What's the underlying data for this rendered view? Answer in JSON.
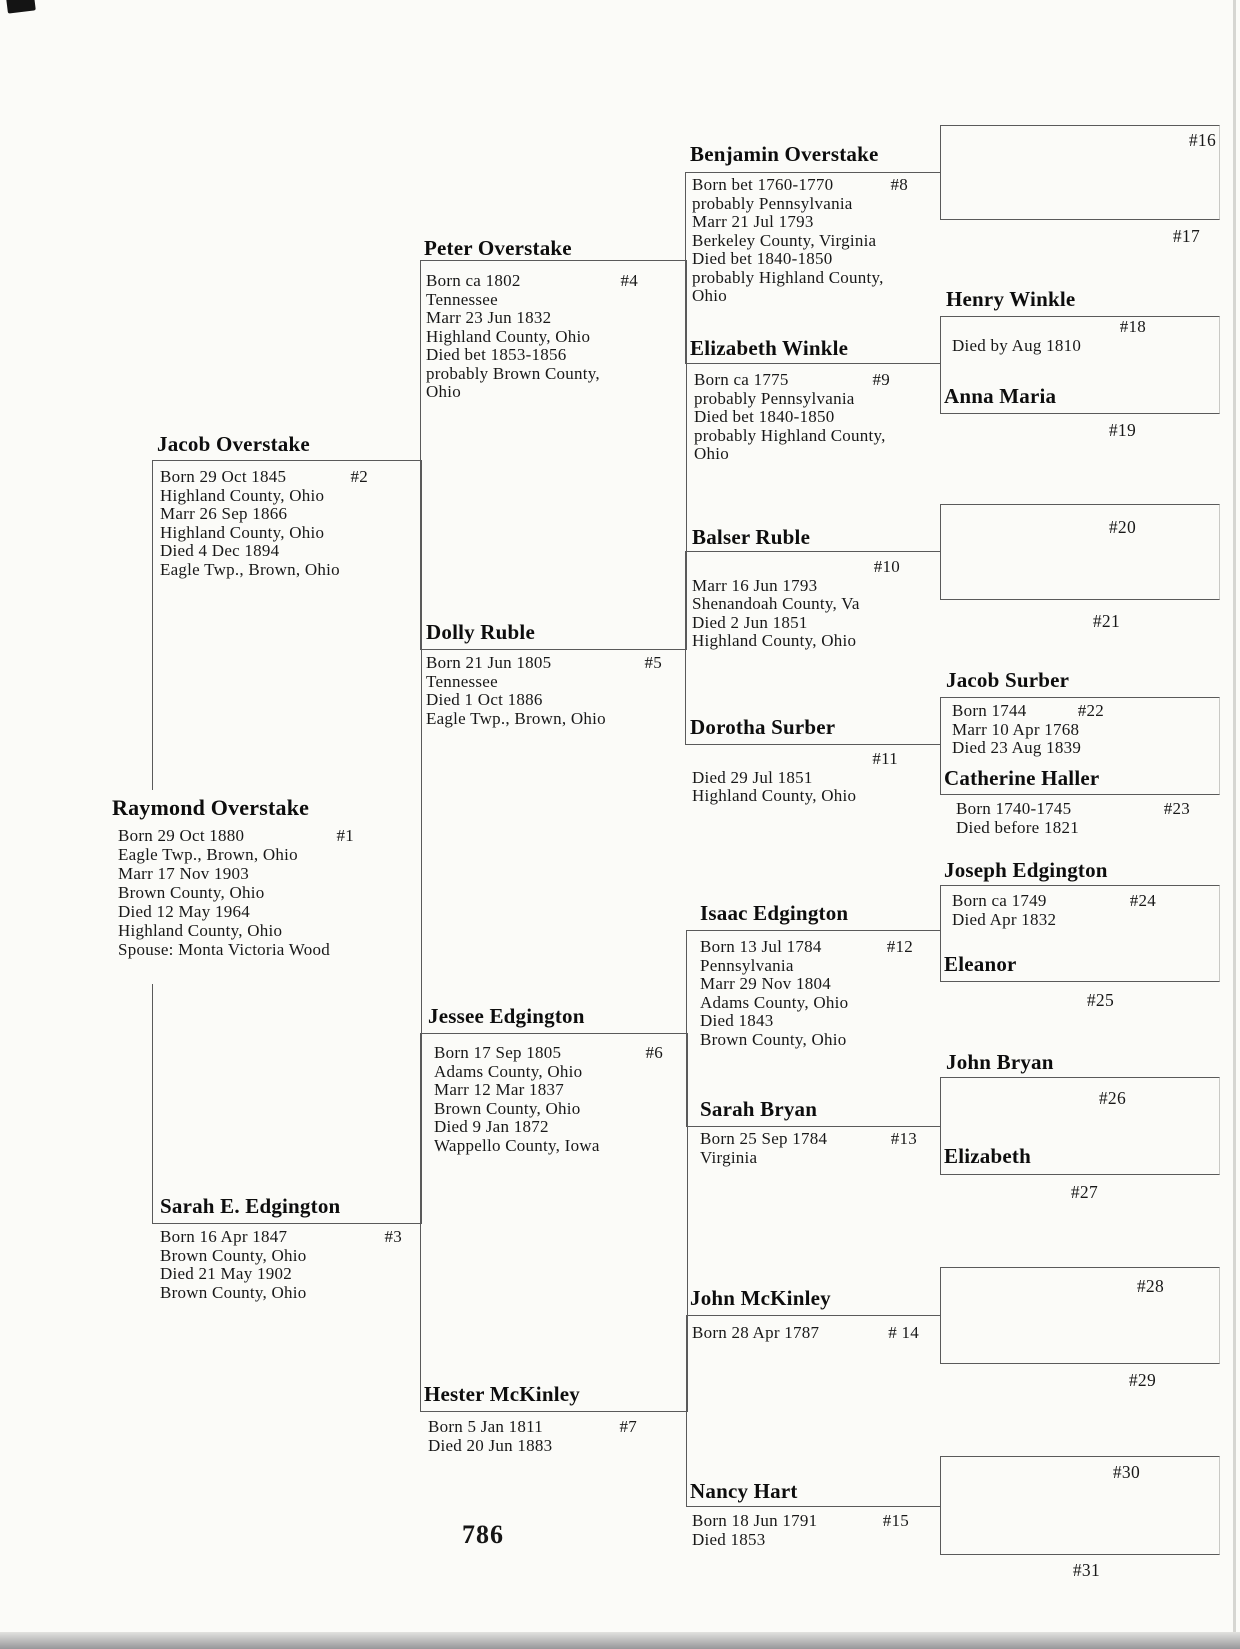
{
  "page": {
    "number": "786"
  },
  "persons": {
    "p1": {
      "name": "Raymond Overstake",
      "num": "#1",
      "lines": [
        "Born 29 Oct 1880",
        "Eagle Twp., Brown, Ohio",
        "Marr 17 Nov 1903",
        "Brown County, Ohio",
        "Died 12 May 1964",
        "Highland County, Ohio",
        "Spouse: Monta Victoria Wood"
      ]
    },
    "p2": {
      "name": "Jacob Overstake",
      "num": "#2",
      "lines": [
        "Born 29 Oct 1845",
        "Highland County, Ohio",
        "Marr 26 Sep 1866",
        "Highland County, Ohio",
        "Died 4 Dec 1894",
        "Eagle Twp., Brown, Ohio"
      ]
    },
    "p3": {
      "name": "Sarah E. Edgington",
      "num": "#3",
      "lines": [
        "Born 16 Apr 1847",
        "Brown County, Ohio",
        "Died 21 May 1902",
        "Brown County, Ohio"
      ]
    },
    "p4": {
      "name": "Peter Overstake",
      "num": "#4",
      "lines": [
        "Born ca 1802",
        "Tennessee",
        "Marr 23 Jun 1832",
        "Highland County, Ohio",
        "Died bet 1853-1856",
        "probably Brown County,",
        "Ohio"
      ]
    },
    "p5": {
      "name": "Dolly Ruble",
      "num": "#5",
      "lines": [
        "Born 21 Jun 1805",
        "Tennessee",
        "Died 1 Oct 1886",
        "Eagle Twp., Brown, Ohio"
      ]
    },
    "p6": {
      "name": "Jessee Edgington",
      "num": "#6",
      "lines": [
        "Born 17 Sep 1805",
        "Adams County, Ohio",
        "Marr 12 Mar 1837",
        "Brown County, Ohio",
        "Died 9 Jan 1872",
        "Wappello County, Iowa"
      ]
    },
    "p7": {
      "name": "Hester McKinley",
      "num": "#7",
      "lines": [
        "Born 5 Jan 1811",
        "Died 20 Jun 1883"
      ]
    },
    "p8": {
      "name": "Benjamin Overstake",
      "num": "#8",
      "lines": [
        "Born bet 1760-1770",
        "probably Pennsylvania",
        "Marr 21 Jul 1793",
        "Berkeley County, Virginia",
        "Died bet 1840-1850",
        "probably Highland County,",
        "Ohio"
      ]
    },
    "p9": {
      "name": "Elizabeth Winkle",
      "num": "#9",
      "lines": [
        "Born ca 1775",
        "probably Pennsylvania",
        "Died bet 1840-1850",
        "probably Highland County,",
        "Ohio"
      ]
    },
    "p10": {
      "name": "Balser Ruble",
      "num": "#10",
      "lines": [
        "Marr 16 Jun 1793",
        "Shenandoah County, Va",
        "Died 2 Jun 1851",
        "Highland County, Ohio"
      ]
    },
    "p11": {
      "name": "Dorotha Surber",
      "num": "#11",
      "lines": [
        "Died 29 Jul 1851",
        "Highland County, Ohio"
      ]
    },
    "p12": {
      "name": "Isaac Edgington",
      "num": "#12",
      "lines": [
        "Born 13 Jul 1784",
        "Pennsylvania",
        "Marr 29 Nov 1804",
        "Adams County, Ohio",
        "Died 1843",
        "Brown County, Ohio"
      ]
    },
    "p13": {
      "name": "Sarah Bryan",
      "num": "#13",
      "lines": [
        "Born 25 Sep 1784",
        "Virginia"
      ]
    },
    "p14": {
      "name": "John McKinley",
      "num": "# 14",
      "lines": [
        "Born 28 Apr 1787"
      ]
    },
    "p15": {
      "name": "Nancy Hart",
      "num": "#15",
      "lines": [
        "Born 18 Jun 1791",
        "Died 1853"
      ]
    },
    "p16": {
      "num": "#16"
    },
    "p17": {
      "num": "#17"
    },
    "p18": {
      "name": "Henry Winkle",
      "num": "#18",
      "lines": [
        "Died by Aug 1810"
      ]
    },
    "p19": {
      "name": "Anna Maria",
      "num": "#19"
    },
    "p20": {
      "num": "#20"
    },
    "p21": {
      "num": "#21"
    },
    "p22": {
      "name": "Jacob Surber",
      "num": "#22",
      "lines": [
        "Born 1744",
        "Marr 10 Apr 1768",
        "Died 23 Aug 1839"
      ]
    },
    "p23": {
      "name": "Catherine Haller",
      "num": "#23",
      "lines": [
        "Born 1740-1745",
        "Died before 1821"
      ]
    },
    "p24": {
      "name": "Joseph Edgington",
      "num": "#24",
      "lines": [
        "Born ca 1749",
        "Died Apr 1832"
      ]
    },
    "p25": {
      "name": "Eleanor",
      "num": "#25"
    },
    "p26": {
      "name": "John Bryan",
      "num": "#26"
    },
    "p27": {
      "name": "Elizabeth",
      "num": "#27"
    },
    "p28": {
      "num": "#28"
    },
    "p29": {
      "num": "#29"
    },
    "p30": {
      "num": "#30"
    },
    "p31": {
      "num": "#31"
    }
  }
}
